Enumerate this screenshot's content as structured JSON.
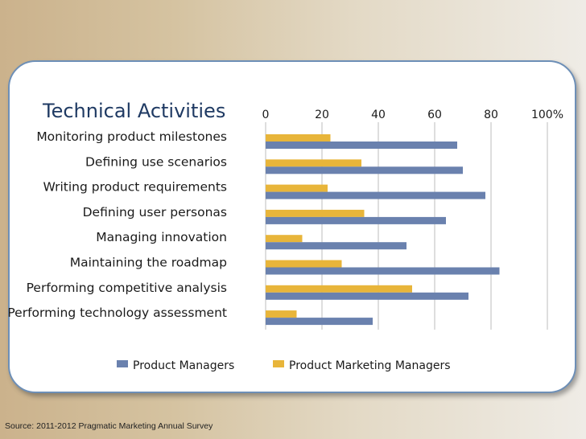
{
  "source_note": "Source: 2011-2012 Pragmatic Marketing Annual Survey",
  "colors": {
    "product_managers": "#6a81ae",
    "product_marketing_managers": "#e8b53a",
    "gridline": "#bdbdbd",
    "axis_text": "#1a1a1a",
    "title_text": "#1f3a63",
    "card_border": "#6d8fb7"
  },
  "chart_data": {
    "type": "bar",
    "orientation": "horizontal",
    "title": "Technical Activities",
    "categories": [
      "Monitoring product milestones",
      "Defining use scenarios",
      "Writing product requirements",
      "Defining user personas",
      "Managing innovation",
      "Maintaining the roadmap",
      "Performing competitive analysis",
      "Performing technology assessment"
    ],
    "series": [
      {
        "name": "Product Managers",
        "color": "#6a81ae",
        "values": [
          68,
          70,
          78,
          64,
          50,
          83,
          72,
          38
        ]
      },
      {
        "name": "Product Marketing Managers",
        "color": "#e8b53a",
        "values": [
          23,
          34,
          22,
          35,
          13,
          27,
          52,
          11
        ]
      }
    ],
    "xlim": [
      0,
      100
    ],
    "x_ticks": [
      "0",
      "20",
      "40",
      "60",
      "80",
      "100%"
    ],
    "grid": true,
    "legend_position": "bottom"
  }
}
